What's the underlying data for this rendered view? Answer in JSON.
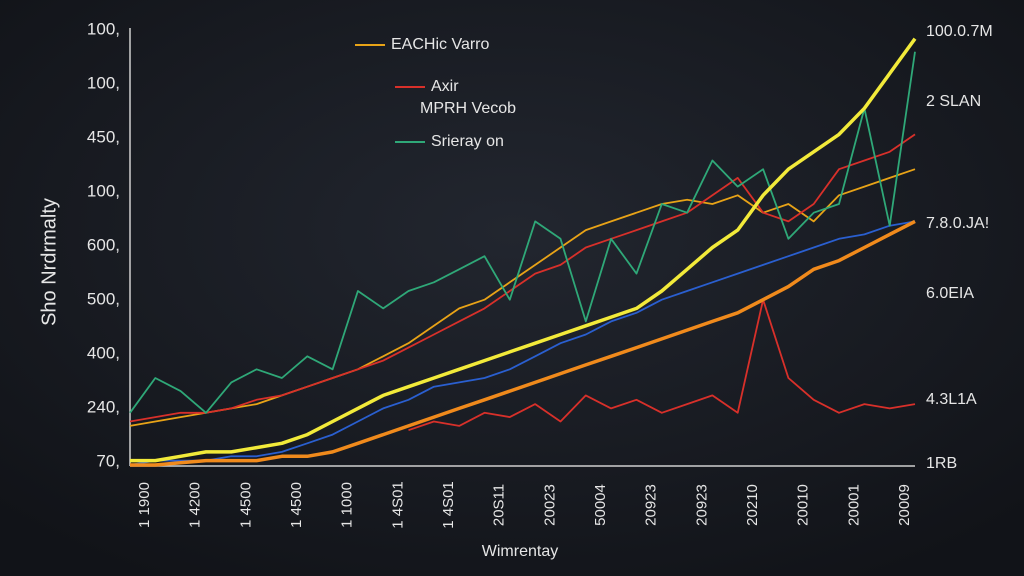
{
  "chart_data": {
    "type": "line",
    "y_title": "Sho Nrdrmalty",
    "x_title": "Wimrentay",
    "y_labels": [
      "100,",
      "100,",
      "450,",
      "100,",
      "600,",
      "500,",
      "400,",
      "240,",
      "70,"
    ],
    "right_labels": [
      {
        "text": "100.0.7M",
        "color": "#e8e8e8"
      },
      {
        "text": "2 SLAN",
        "color": "#c8d830"
      },
      {
        "text": "7.8.0.JA!",
        "color": "#f0a030"
      },
      {
        "text": "6.0EIA",
        "color": "#f0c030"
      },
      {
        "text": "4.3L1A",
        "color": "#f07040"
      },
      {
        "text": "1RB",
        "color": "#e85030"
      }
    ],
    "x_labels": [
      "1 1900",
      "1 4200",
      "1 4500",
      "1 4500",
      "1 1000",
      "1 4S01",
      "1 4S01",
      "20S11",
      "20023",
      "50004",
      "20923",
      "20923",
      "20210",
      "20010",
      "20001",
      "20009"
    ],
    "ylim": [
      0,
      100
    ],
    "series": [
      {
        "name": "EACHic Varro",
        "color": "#e8a317",
        "values": [
          9,
          10,
          11,
          12,
          13,
          14,
          16,
          18,
          20,
          22,
          25,
          28,
          32,
          36,
          38,
          42,
          46,
          50,
          54,
          56,
          58,
          60,
          61,
          60,
          62,
          58,
          60,
          56,
          62,
          64,
          66,
          68
        ]
      },
      {
        "name": "Axir",
        "color": "#d8302a",
        "values": [
          10,
          11,
          12,
          12,
          13,
          15,
          16,
          18,
          20,
          22,
          24,
          27,
          30,
          33,
          36,
          40,
          44,
          46,
          50,
          52,
          54,
          56,
          58,
          62,
          66,
          58,
          56,
          60,
          68,
          70,
          72,
          76
        ]
      },
      {
        "name": "MPRH Vecob",
        "color": "#2a5fd0",
        "values": [
          0,
          1,
          1,
          1,
          2,
          2,
          3,
          5,
          7,
          10,
          13,
          15,
          18,
          19,
          20,
          22,
          25,
          28,
          30,
          33,
          35,
          38,
          40,
          42,
          44,
          46,
          48,
          50,
          52,
          53,
          55,
          56
        ]
      },
      {
        "name": "Srieray on",
        "color": "#2fa878",
        "values": [
          12,
          20,
          17,
          12,
          19,
          22,
          20,
          25,
          22,
          40,
          36,
          40,
          42,
          45,
          48,
          38,
          56,
          52,
          33,
          52,
          44,
          60,
          58,
          70,
          64,
          68,
          52,
          58,
          60,
          82,
          55,
          95
        ]
      },
      {
        "color": "#d8302a",
        "values": [
          null,
          null,
          null,
          null,
          null,
          null,
          null,
          null,
          null,
          null,
          null,
          8,
          10,
          9,
          12,
          11,
          14,
          10,
          16,
          13,
          15,
          12,
          14,
          16,
          12,
          38,
          20,
          15,
          12,
          14,
          13,
          14
        ]
      },
      {
        "color": "#f2ea3a",
        "width": 3.5,
        "values": [
          1,
          1,
          2,
          3,
          3,
          4,
          5,
          7,
          10,
          13,
          16,
          18,
          20,
          22,
          24,
          26,
          28,
          30,
          32,
          34,
          36,
          40,
          45,
          50,
          54,
          62,
          68,
          72,
          76,
          82,
          90,
          98
        ]
      },
      {
        "color": "#f08a1c",
        "width": 3.5,
        "values": [
          0,
          0,
          0.5,
          1,
          1,
          1,
          2,
          2,
          3,
          5,
          7,
          9,
          11,
          13,
          15,
          17,
          19,
          21,
          23,
          25,
          27,
          29,
          31,
          33,
          35,
          38,
          41,
          45,
          47,
          50,
          53,
          56
        ]
      }
    ]
  }
}
